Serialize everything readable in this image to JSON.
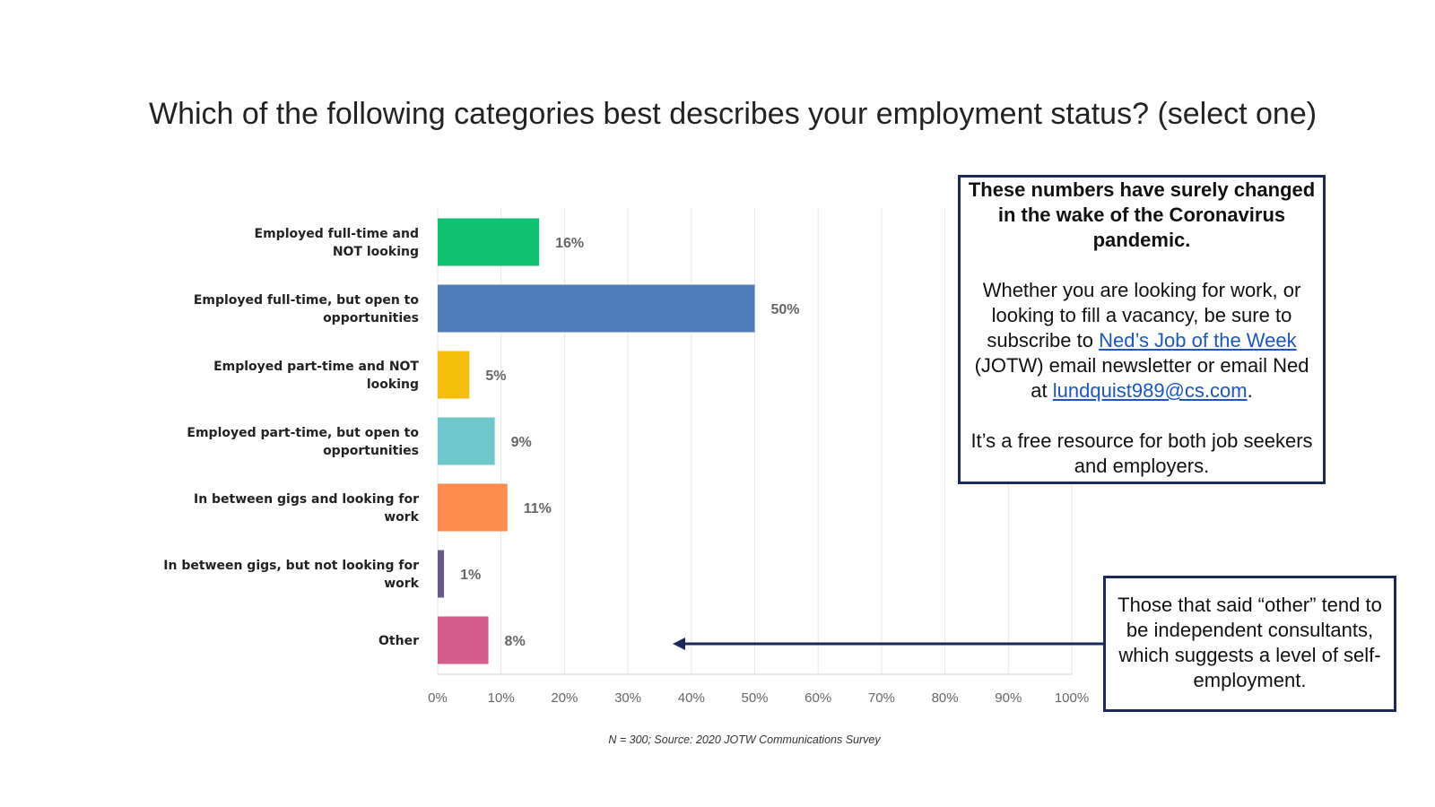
{
  "title": "Which of the following categories best describes your employment status? (select one)",
  "chart_data": {
    "type": "bar",
    "orientation": "horizontal",
    "title": "Which of the following categories best describes your employment status? (select one)",
    "categories": [
      [
        "Employed full-time and",
        "NOT looking"
      ],
      [
        "Employed full-time, but open to",
        "opportunities"
      ],
      [
        "Employed part-time and NOT",
        "looking"
      ],
      [
        "Employed part-time, but open to",
        "opportunities"
      ],
      [
        "In between gigs and looking for",
        "work"
      ],
      [
        "In between gigs, but not looking for",
        "work"
      ],
      [
        "Other"
      ]
    ],
    "values": [
      16,
      50,
      5,
      9,
      11,
      1,
      8
    ],
    "value_labels": [
      "16%",
      "50%",
      "5%",
      "9%",
      "11%",
      "1%",
      "8%"
    ],
    "colors": [
      "#10c16f",
      "#4f7db8",
      "#f5be0b",
      "#6ec8cb",
      "#ff8c4f",
      "#6b5a87",
      "#d45d8e"
    ],
    "xticks": [
      "0%",
      "10%",
      "20%",
      "30%",
      "40%",
      "50%",
      "60%",
      "70%",
      "80%",
      "90%",
      "100%"
    ],
    "xlim": [
      0,
      100
    ],
    "grid": true
  },
  "source": "N = 300; Source: 2020 JOTW Communications Survey",
  "callout_main": {
    "heading": "These numbers have surely changed in the wake of the Coronavirus pandemic.",
    "body_before_link": "Whether you are looking for work, or looking to fill a vacancy, be sure to subscribe to",
    "link_text": "Ned’s Job of the Week",
    "body_after_link": "(JOTW)  email newsletter or email Ned at",
    "email": "lundquist989@cs.com",
    "period": ".",
    "footer": "It’s a free resource for both job seekers and employers."
  },
  "callout_other": {
    "text": "Those that said “other” tend to be independent consultants, which suggests a level of self-employment."
  },
  "colors": {
    "border": "#1c2a5a",
    "link": "#1a56c9",
    "grid": "#e6e6ea"
  }
}
